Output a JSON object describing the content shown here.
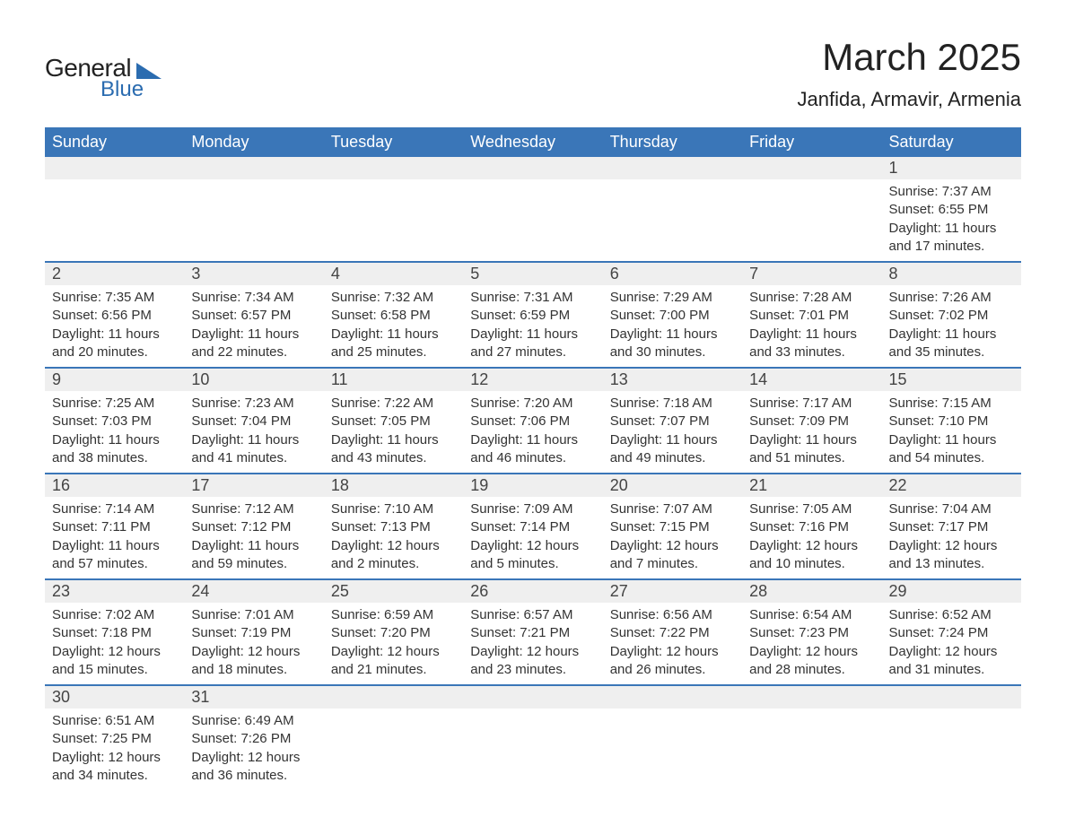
{
  "brand": {
    "line1": "General",
    "line2": "Blue"
  },
  "title": "March 2025",
  "location": "Janfida, Armavir, Armenia",
  "colors": {
    "header_bg": "#3a76b8",
    "header_text": "#ffffff",
    "dayrow_bg": "#efefef",
    "row_divider": "#3a76b8",
    "page_bg": "#ffffff",
    "body_text": "#333333",
    "logo_blue": "#2b6cb0"
  },
  "typography": {
    "title_fontsize": 42,
    "location_fontsize": 22,
    "header_fontsize": 18,
    "daynum_fontsize": 18,
    "detail_fontsize": 15
  },
  "calendar": {
    "type": "table",
    "columns": [
      "Sunday",
      "Monday",
      "Tuesday",
      "Wednesday",
      "Thursday",
      "Friday",
      "Saturday"
    ],
    "weeks": [
      [
        null,
        null,
        null,
        null,
        null,
        null,
        {
          "n": "1",
          "sunrise": "7:37 AM",
          "sunset": "6:55 PM",
          "daylight": "11 hours and 17 minutes."
        }
      ],
      [
        {
          "n": "2",
          "sunrise": "7:35 AM",
          "sunset": "6:56 PM",
          "daylight": "11 hours and 20 minutes."
        },
        {
          "n": "3",
          "sunrise": "7:34 AM",
          "sunset": "6:57 PM",
          "daylight": "11 hours and 22 minutes."
        },
        {
          "n": "4",
          "sunrise": "7:32 AM",
          "sunset": "6:58 PM",
          "daylight": "11 hours and 25 minutes."
        },
        {
          "n": "5",
          "sunrise": "7:31 AM",
          "sunset": "6:59 PM",
          "daylight": "11 hours and 27 minutes."
        },
        {
          "n": "6",
          "sunrise": "7:29 AM",
          "sunset": "7:00 PM",
          "daylight": "11 hours and 30 minutes."
        },
        {
          "n": "7",
          "sunrise": "7:28 AM",
          "sunset": "7:01 PM",
          "daylight": "11 hours and 33 minutes."
        },
        {
          "n": "8",
          "sunrise": "7:26 AM",
          "sunset": "7:02 PM",
          "daylight": "11 hours and 35 minutes."
        }
      ],
      [
        {
          "n": "9",
          "sunrise": "7:25 AM",
          "sunset": "7:03 PM",
          "daylight": "11 hours and 38 minutes."
        },
        {
          "n": "10",
          "sunrise": "7:23 AM",
          "sunset": "7:04 PM",
          "daylight": "11 hours and 41 minutes."
        },
        {
          "n": "11",
          "sunrise": "7:22 AM",
          "sunset": "7:05 PM",
          "daylight": "11 hours and 43 minutes."
        },
        {
          "n": "12",
          "sunrise": "7:20 AM",
          "sunset": "7:06 PM",
          "daylight": "11 hours and 46 minutes."
        },
        {
          "n": "13",
          "sunrise": "7:18 AM",
          "sunset": "7:07 PM",
          "daylight": "11 hours and 49 minutes."
        },
        {
          "n": "14",
          "sunrise": "7:17 AM",
          "sunset": "7:09 PM",
          "daylight": "11 hours and 51 minutes."
        },
        {
          "n": "15",
          "sunrise": "7:15 AM",
          "sunset": "7:10 PM",
          "daylight": "11 hours and 54 minutes."
        }
      ],
      [
        {
          "n": "16",
          "sunrise": "7:14 AM",
          "sunset": "7:11 PM",
          "daylight": "11 hours and 57 minutes."
        },
        {
          "n": "17",
          "sunrise": "7:12 AM",
          "sunset": "7:12 PM",
          "daylight": "11 hours and 59 minutes."
        },
        {
          "n": "18",
          "sunrise": "7:10 AM",
          "sunset": "7:13 PM",
          "daylight": "12 hours and 2 minutes."
        },
        {
          "n": "19",
          "sunrise": "7:09 AM",
          "sunset": "7:14 PM",
          "daylight": "12 hours and 5 minutes."
        },
        {
          "n": "20",
          "sunrise": "7:07 AM",
          "sunset": "7:15 PM",
          "daylight": "12 hours and 7 minutes."
        },
        {
          "n": "21",
          "sunrise": "7:05 AM",
          "sunset": "7:16 PM",
          "daylight": "12 hours and 10 minutes."
        },
        {
          "n": "22",
          "sunrise": "7:04 AM",
          "sunset": "7:17 PM",
          "daylight": "12 hours and 13 minutes."
        }
      ],
      [
        {
          "n": "23",
          "sunrise": "7:02 AM",
          "sunset": "7:18 PM",
          "daylight": "12 hours and 15 minutes."
        },
        {
          "n": "24",
          "sunrise": "7:01 AM",
          "sunset": "7:19 PM",
          "daylight": "12 hours and 18 minutes."
        },
        {
          "n": "25",
          "sunrise": "6:59 AM",
          "sunset": "7:20 PM",
          "daylight": "12 hours and 21 minutes."
        },
        {
          "n": "26",
          "sunrise": "6:57 AM",
          "sunset": "7:21 PM",
          "daylight": "12 hours and 23 minutes."
        },
        {
          "n": "27",
          "sunrise": "6:56 AM",
          "sunset": "7:22 PM",
          "daylight": "12 hours and 26 minutes."
        },
        {
          "n": "28",
          "sunrise": "6:54 AM",
          "sunset": "7:23 PM",
          "daylight": "12 hours and 28 minutes."
        },
        {
          "n": "29",
          "sunrise": "6:52 AM",
          "sunset": "7:24 PM",
          "daylight": "12 hours and 31 minutes."
        }
      ],
      [
        {
          "n": "30",
          "sunrise": "6:51 AM",
          "sunset": "7:25 PM",
          "daylight": "12 hours and 34 minutes."
        },
        {
          "n": "31",
          "sunrise": "6:49 AM",
          "sunset": "7:26 PM",
          "daylight": "12 hours and 36 minutes."
        },
        null,
        null,
        null,
        null,
        null
      ]
    ],
    "labels": {
      "sunrise": "Sunrise:",
      "sunset": "Sunset:",
      "daylight": "Daylight:"
    }
  }
}
